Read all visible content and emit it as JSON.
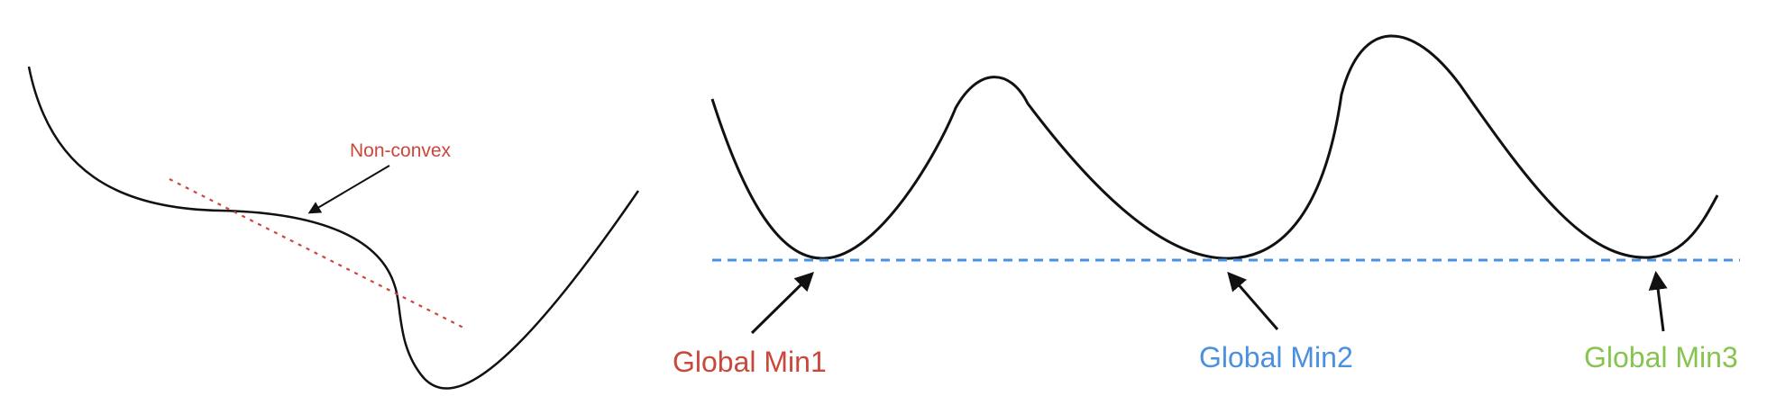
{
  "left_diagram": {
    "annotation": "Non-convex",
    "annotation_color": "#c9483b",
    "tangent_color": "#c9483b",
    "curve_color": "#111111"
  },
  "right_diagram": {
    "curve_color": "#111111",
    "baseline_color": "#4a90e2",
    "labels": [
      {
        "text": "Global Min1",
        "color": "#c9483b"
      },
      {
        "text": "Global Min2",
        "color": "#4a90e2"
      },
      {
        "text": "Global Min3",
        "color": "#86c450"
      }
    ]
  }
}
